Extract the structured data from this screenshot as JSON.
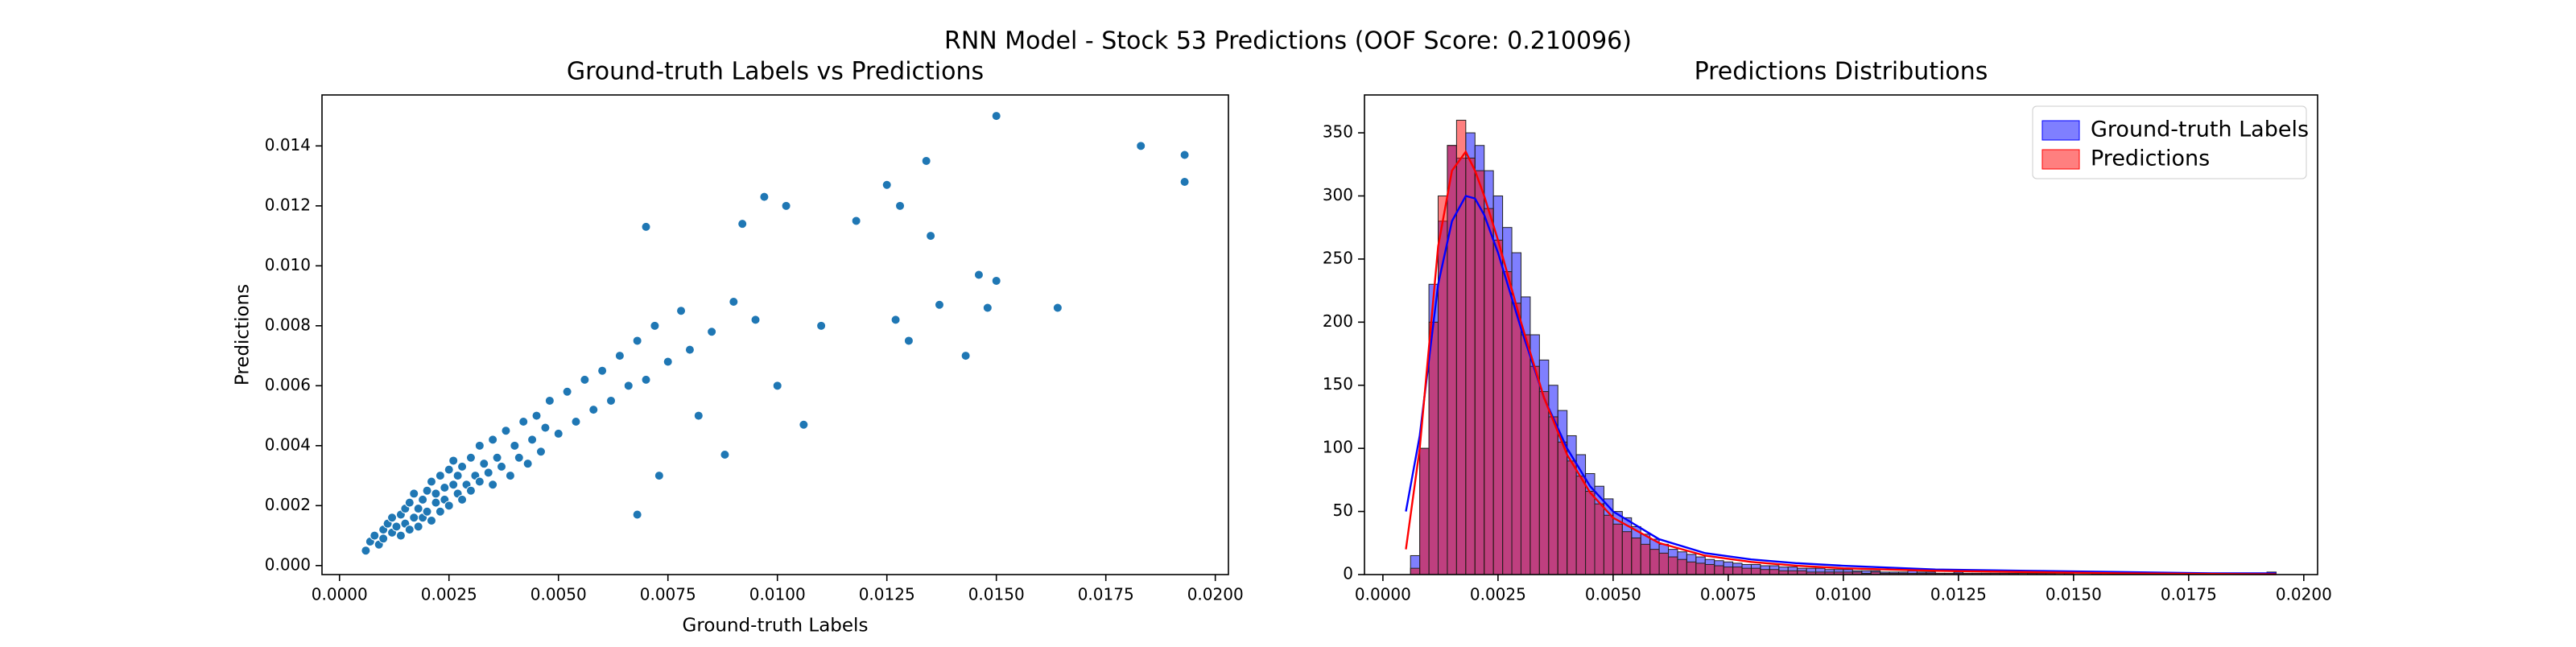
{
  "title": "RNN Model - Stock 53 Predictions (OOF Score: 0.210096)",
  "chart_data": [
    {
      "type": "scatter",
      "title": "Ground-truth Labels vs Predictions",
      "xlabel": "Ground-truth Labels",
      "ylabel": "Predictions",
      "color": "#1f77b4",
      "x": [
        0.0006,
        0.0007,
        0.0008,
        0.0009,
        0.001,
        0.001,
        0.0011,
        0.0012,
        0.0012,
        0.0013,
        0.0014,
        0.0014,
        0.0015,
        0.0015,
        0.0016,
        0.0016,
        0.0017,
        0.0017,
        0.0018,
        0.0018,
        0.0019,
        0.0019,
        0.002,
        0.002,
        0.0021,
        0.0021,
        0.0022,
        0.0022,
        0.0023,
        0.0023,
        0.0024,
        0.0024,
        0.0025,
        0.0025,
        0.0026,
        0.0026,
        0.0027,
        0.0027,
        0.0028,
        0.0028,
        0.0029,
        0.003,
        0.003,
        0.0031,
        0.0032,
        0.0032,
        0.0033,
        0.0034,
        0.0035,
        0.0035,
        0.0036,
        0.0037,
        0.0038,
        0.0039,
        0.004,
        0.0041,
        0.0042,
        0.0043,
        0.0044,
        0.0045,
        0.0046,
        0.0047,
        0.0048,
        0.005,
        0.0052,
        0.0054,
        0.0056,
        0.0058,
        0.006,
        0.0062,
        0.0064,
        0.0066,
        0.0068,
        0.007,
        0.0072,
        0.0075,
        0.0078,
        0.008,
        0.0085,
        0.009,
        0.0095,
        0.015,
        0.0183,
        0.0193,
        0.0193,
        0.0164,
        0.015,
        0.0148,
        0.0146,
        0.0143,
        0.0137,
        0.0134,
        0.0135,
        0.0125,
        0.0128,
        0.0118,
        0.0102,
        0.0097,
        0.0092,
        0.007,
        0.0068,
        0.0073,
        0.0106,
        0.0127,
        0.013,
        0.011,
        0.01,
        0.0088,
        0.0082
      ],
      "values": [
        0.0005,
        0.0008,
        0.001,
        0.0007,
        0.0012,
        0.0009,
        0.0014,
        0.0011,
        0.0016,
        0.0013,
        0.001,
        0.0017,
        0.0014,
        0.0019,
        0.0012,
        0.0021,
        0.0016,
        0.0024,
        0.0013,
        0.0019,
        0.0022,
        0.0016,
        0.0025,
        0.0018,
        0.0015,
        0.0028,
        0.0021,
        0.0024,
        0.003,
        0.0018,
        0.0026,
        0.0022,
        0.0032,
        0.002,
        0.0027,
        0.0035,
        0.0024,
        0.003,
        0.0022,
        0.0033,
        0.0027,
        0.0036,
        0.0025,
        0.003,
        0.004,
        0.0028,
        0.0034,
        0.0031,
        0.0042,
        0.0027,
        0.0036,
        0.0033,
        0.0045,
        0.003,
        0.004,
        0.0036,
        0.0048,
        0.0034,
        0.0042,
        0.005,
        0.0038,
        0.0046,
        0.0055,
        0.0044,
        0.0058,
        0.0048,
        0.0062,
        0.0052,
        0.0065,
        0.0055,
        0.007,
        0.006,
        0.0075,
        0.0062,
        0.008,
        0.0068,
        0.0085,
        0.0072,
        0.0078,
        0.0088,
        0.0082,
        0.015,
        0.014,
        0.0137,
        0.0128,
        0.0086,
        0.0095,
        0.0086,
        0.0097,
        0.007,
        0.0087,
        0.0135,
        0.011,
        0.0127,
        0.012,
        0.0115,
        0.012,
        0.0123,
        0.0114,
        0.0113,
        0.0017,
        0.003,
        0.0047,
        0.0082,
        0.0075,
        0.008,
        0.006,
        0.0037,
        0.005
      ],
      "xlim": [
        -0.0004,
        0.0203
      ],
      "xticks": [
        {
          "value": 0,
          "label": "0.0000"
        },
        {
          "value": 0.0025,
          "label": "0.0025"
        },
        {
          "value": 0.005,
          "label": "0.0050"
        },
        {
          "value": 0.0075,
          "label": "0.0075"
        },
        {
          "value": 0.01,
          "label": "0.0100"
        },
        {
          "value": 0.0125,
          "label": "0.0125"
        },
        {
          "value": 0.015,
          "label": "0.0150"
        },
        {
          "value": 0.0175,
          "label": "0.0175"
        },
        {
          "value": 0.02,
          "label": "0.0200"
        }
      ],
      "ylim": [
        -0.0003,
        0.0157
      ],
      "yticks": [
        {
          "value": 0,
          "label": "0.000"
        },
        {
          "value": 0.002,
          "label": "0.002"
        },
        {
          "value": 0.004,
          "label": "0.004"
        },
        {
          "value": 0.006,
          "label": "0.006"
        },
        {
          "value": 0.008,
          "label": "0.008"
        },
        {
          "value": 0.01,
          "label": "0.010"
        },
        {
          "value": 0.012,
          "label": "0.012"
        },
        {
          "value": 0.014,
          "label": "0.014"
        }
      ]
    },
    {
      "type": "histogram",
      "title": "Predictions Distributions",
      "legend": "upper right",
      "bins": [
        0.0006,
        0.0008,
        0.001,
        0.0012,
        0.0014,
        0.0016,
        0.0018,
        0.002,
        0.0022,
        0.0024,
        0.0026,
        0.0028,
        0.003,
        0.0032,
        0.0034,
        0.0036,
        0.0038,
        0.004,
        0.0042,
        0.0044,
        0.0046,
        0.0048,
        0.005,
        0.0052,
        0.0054,
        0.0056,
        0.0058,
        0.006,
        0.0062,
        0.0064,
        0.0066,
        0.0068,
        0.007,
        0.0072,
        0.0074,
        0.0076,
        0.0078,
        0.008,
        0.0082,
        0.0084,
        0.0086,
        0.0088,
        0.009,
        0.0092,
        0.0094,
        0.0096,
        0.0098,
        0.01,
        0.0102,
        0.0104,
        0.0106,
        0.0108,
        0.011,
        0.0112,
        0.0114,
        0.0116,
        0.0118,
        0.012,
        0.0122,
        0.0124,
        0.0126,
        0.0128,
        0.013,
        0.0132,
        0.0134,
        0.0136,
        0.0138,
        0.014,
        0.0142,
        0.0144,
        0.0146,
        0.0148,
        0.015,
        0.0152,
        0.0154,
        0.0156,
        0.0158,
        0.016,
        0.0162,
        0.0164,
        0.0166,
        0.0168,
        0.017,
        0.0172,
        0.0174,
        0.0176,
        0.0178,
        0.018,
        0.0182,
        0.0184,
        0.0186,
        0.0188,
        0.019,
        0.0192,
        0.0194
      ],
      "kde_x": [
        0.0005,
        0.0008,
        0.001,
        0.0012,
        0.0015,
        0.0018,
        0.002,
        0.0022,
        0.0025,
        0.003,
        0.0035,
        0.004,
        0.0045,
        0.005,
        0.006,
        0.007,
        0.008,
        0.009,
        0.01,
        0.012,
        0.014,
        0.016,
        0.018,
        0.0194
      ],
      "series": [
        {
          "name": "Ground-truth Labels",
          "color": "#0000ff",
          "values": [
            15,
            100,
            230,
            280,
            340,
            330,
            350,
            340,
            320,
            300,
            275,
            255,
            220,
            190,
            170,
            150,
            130,
            110,
            95,
            80,
            70,
            60,
            50,
            45,
            38,
            32,
            28,
            24,
            20,
            18,
            16,
            14,
            12,
            11,
            10,
            9,
            8,
            8,
            7,
            7,
            6,
            6,
            5,
            5,
            5,
            4,
            4,
            4,
            3,
            3,
            3,
            2,
            2,
            2,
            3,
            2,
            2,
            1,
            1,
            2,
            1,
            1,
            1,
            1,
            1,
            1,
            0,
            1,
            1,
            1,
            0,
            1,
            0,
            0,
            1,
            0,
            0,
            1,
            0,
            0,
            0,
            1,
            0,
            0,
            0,
            0,
            1,
            0,
            0,
            0,
            0,
            0,
            1,
            2
          ],
          "kde": [
            50,
            110,
            170,
            230,
            280,
            300,
            298,
            285,
            255,
            195,
            140,
            100,
            70,
            50,
            28,
            17,
            12,
            9,
            7,
            4,
            3,
            2,
            1,
            1
          ]
        },
        {
          "name": "Predictions",
          "color": "#ff0000",
          "values": [
            5,
            100,
            200,
            300,
            340,
            360,
            330,
            320,
            290,
            265,
            240,
            215,
            190,
            165,
            145,
            125,
            105,
            90,
            78,
            66,
            56,
            47,
            40,
            34,
            29,
            24,
            20,
            17,
            14,
            12,
            10,
            9,
            8,
            7,
            6,
            6,
            5,
            5,
            4,
            4,
            3,
            3,
            3,
            2,
            2,
            2,
            2,
            2,
            2,
            1,
            2,
            1,
            1,
            1,
            1,
            1,
            1,
            1,
            1,
            1,
            1,
            1,
            1,
            1,
            1,
            1,
            1,
            1,
            1,
            1,
            1,
            1,
            0,
            0,
            0,
            0,
            0,
            0,
            0,
            0,
            0,
            0,
            0,
            0,
            0,
            0,
            0,
            0,
            0,
            0,
            0,
            0,
            0,
            0
          ],
          "kde": [
            20,
            100,
            180,
            260,
            320,
            335,
            320,
            300,
            265,
            200,
            140,
            95,
            65,
            45,
            25,
            15,
            10,
            7,
            5,
            3,
            2,
            1,
            0.5,
            0.3
          ]
        }
      ],
      "xlim": [
        -0.0004,
        0.0203
      ],
      "xticks": [
        {
          "value": 0,
          "label": "0.0000"
        },
        {
          "value": 0.0025,
          "label": "0.0025"
        },
        {
          "value": 0.005,
          "label": "0.0050"
        },
        {
          "value": 0.0075,
          "label": "0.0075"
        },
        {
          "value": 0.01,
          "label": "0.0100"
        },
        {
          "value": 0.0125,
          "label": "0.0125"
        },
        {
          "value": 0.015,
          "label": "0.0150"
        },
        {
          "value": 0.0175,
          "label": "0.0175"
        },
        {
          "value": 0.02,
          "label": "0.0200"
        }
      ],
      "ylim": [
        0,
        380
      ],
      "yticks": [
        0,
        50,
        100,
        150,
        200,
        250,
        300,
        350
      ]
    }
  ]
}
